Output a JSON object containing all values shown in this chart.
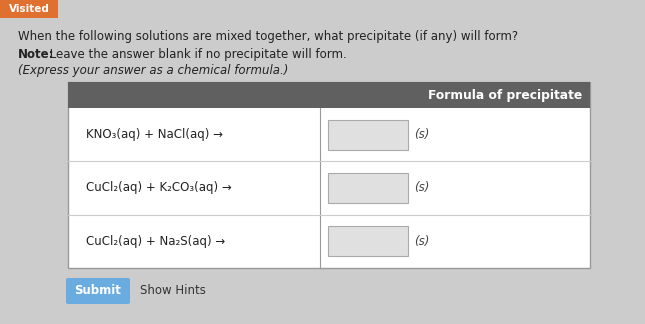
{
  "visited_label": "Visited",
  "visited_bg": "#e07030",
  "page_bg": "#cccccc",
  "title_line1": "When the following solutions are mixed together, what precipitate (if any) will form?",
  "note_bold": "Note:",
  "note_rest": " Leave the answer blank if no precipitate will form.",
  "subtitle": "(Express your answer as a chemical formula.)",
  "table_header": "Formula of precipitate",
  "table_header_bg": "#606060",
  "table_header_text": "#ffffff",
  "table_bg": "#ffffff",
  "table_border": "#999999",
  "row_separator": "#cccccc",
  "rows": [
    "KNO₃(aq) + NaCl(aq) →",
    "CuCl₂(aq) + K₂CO₃(aq) →",
    "CuCl₂(aq) + Na₂S(aq) →"
  ],
  "s_label": "(s)",
  "input_box_bg": "#e0e0e0",
  "input_box_border": "#aaaaaa",
  "submit_bg": "#6aace0",
  "submit_text": "Submit",
  "show_hints_text": "Show Hints",
  "font_size_title": 8.5,
  "font_size_note": 8.5,
  "font_size_rows": 8.5,
  "font_size_header": 8.8,
  "font_size_submit": 8.5,
  "font_size_visited": 7.5
}
